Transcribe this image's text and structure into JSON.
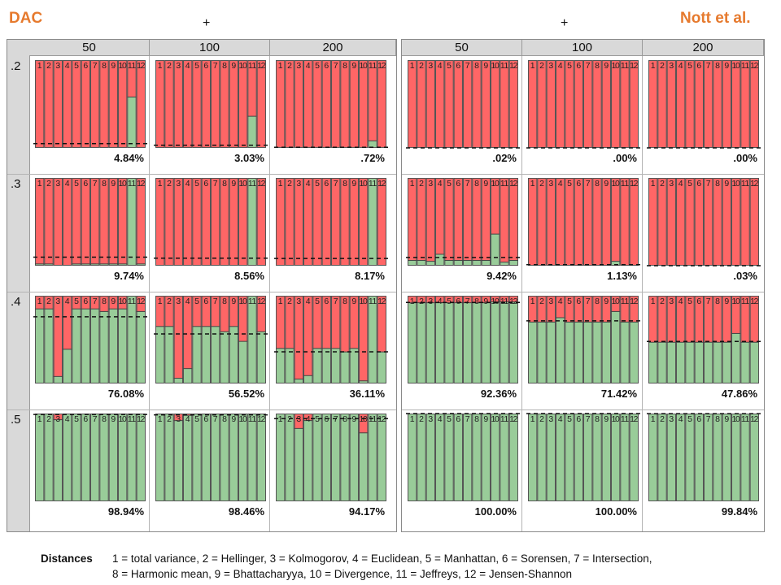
{
  "titles": {
    "left": "DAC",
    "right": "Nott et al.",
    "plus": "+"
  },
  "colors": {
    "pass": "#99cc99",
    "fail": "#ff6666",
    "header_bg": "#d9d9d9",
    "title": "#e67a2e"
  },
  "legend": {
    "label": "Distances",
    "line1": "1 = total variance, 2 = Hellinger, 3 = Kolmogorov, 4 = Euclidean, 5 = Manhattan, 6 = Sorensen, 7 = Intersection,",
    "line2": "8 = Harmonic mean, 9 = Bhattacharyya, 10 = Divergence, 11 = Jeffreys, 12 = Jensen-Shannon"
  },
  "chart_data": {
    "type": "bar",
    "title": "Acceptance proportion per distance (green = accepted, red = rejected); dashed line = overall acceptance",
    "columns": [
      "50",
      "100",
      "200"
    ],
    "rows": [
      ".2",
      ".3",
      ".4",
      ".5"
    ],
    "categories": [
      "1",
      "2",
      "3",
      "4",
      "5",
      "6",
      "7",
      "8",
      "9",
      "10",
      "11",
      "12"
    ],
    "ylim": [
      0,
      1
    ],
    "panels": [
      {
        "name": "DAC",
        "cells": [
          [
            {
              "label": "4.84%",
              "mean": 0.0484,
              "values": [
                0,
                0,
                0,
                0,
                0,
                0,
                0,
                0,
                0,
                0,
                0.58,
                0
              ]
            },
            {
              "label": "3.03%",
              "mean": 0.0303,
              "values": [
                0,
                0,
                0,
                0,
                0,
                0,
                0,
                0,
                0,
                0,
                0.36,
                0
              ]
            },
            {
              "label": ".72%",
              "mean": 0.0072,
              "values": [
                0,
                0,
                0,
                0,
                0,
                0,
                0,
                0,
                0,
                0,
                0.08,
                0
              ]
            }
          ],
          [
            {
              "label": "9.74%",
              "mean": 0.0974,
              "values": [
                0.02,
                0.02,
                0,
                0,
                0.02,
                0.02,
                0.02,
                0.02,
                0.02,
                0.02,
                1.0,
                0.02
              ]
            },
            {
              "label": "8.56%",
              "mean": 0.0856,
              "values": [
                0,
                0,
                0,
                0,
                0,
                0,
                0,
                0,
                0,
                0,
                1.0,
                0
              ]
            },
            {
              "label": "8.17%",
              "mean": 0.0817,
              "values": [
                0,
                0,
                0,
                0,
                0,
                0,
                0,
                0,
                0,
                0,
                1.0,
                0
              ]
            }
          ],
          [
            {
              "label": "76.08%",
              "mean": 0.7608,
              "values": [
                0.85,
                0.85,
                0.08,
                0.39,
                0.85,
                0.85,
                0.85,
                0.82,
                0.85,
                0.85,
                1.0,
                0.82
              ]
            },
            {
              "label": "56.52%",
              "mean": 0.5652,
              "values": [
                0.65,
                0.65,
                0.06,
                0.17,
                0.65,
                0.65,
                0.65,
                0.59,
                0.65,
                0.48,
                1.0,
                0.59
              ]
            },
            {
              "label": "36.11%",
              "mean": 0.3611,
              "values": [
                0.4,
                0.4,
                0.05,
                0.09,
                0.4,
                0.4,
                0.4,
                0.36,
                0.4,
                0.03,
                1.0,
                0.36
              ]
            }
          ],
          [
            {
              "label": "98.94%",
              "mean": 0.9894,
              "values": [
                1,
                1,
                0.93,
                1,
                1,
                1,
                1,
                1,
                1,
                1,
                1,
                1
              ]
            },
            {
              "label": "98.46%",
              "mean": 0.9846,
              "values": [
                1,
                1,
                0.92,
                0.98,
                1,
                1,
                1,
                1,
                1,
                1,
                1,
                1
              ]
            },
            {
              "label": "94.17%",
              "mean": 0.9417,
              "values": [
                1,
                1,
                0.83,
                0.92,
                1,
                1,
                1,
                1,
                1,
                0.78,
                1,
                1
              ]
            }
          ]
        ]
      },
      {
        "name": "Nott et al.",
        "cells": [
          [
            {
              "label": ".02%",
              "mean": 0.0002,
              "values": [
                0,
                0,
                0,
                0,
                0,
                0,
                0,
                0,
                0,
                0,
                0,
                0
              ]
            },
            {
              "label": ".00%",
              "mean": 0.0,
              "values": [
                0,
                0,
                0,
                0,
                0,
                0,
                0,
                0,
                0,
                0,
                0,
                0
              ]
            },
            {
              "label": ".00%",
              "mean": 0.0,
              "values": [
                0,
                0,
                0,
                0,
                0,
                0,
                0,
                0,
                0,
                0,
                0,
                0
              ]
            }
          ],
          [
            {
              "label": "9.42%",
              "mean": 0.0942,
              "values": [
                0.06,
                0.06,
                0.05,
                0.13,
                0.06,
                0.06,
                0.06,
                0.06,
                0.06,
                0.36,
                0.04,
                0.06
              ]
            },
            {
              "label": "1.13%",
              "mean": 0.0113,
              "values": [
                0,
                0,
                0,
                0,
                0,
                0,
                0,
                0,
                0,
                0.05,
                0,
                0
              ]
            },
            {
              "label": ".03%",
              "mean": 0.0003,
              "values": [
                0,
                0,
                0,
                0,
                0,
                0,
                0,
                0,
                0,
                0,
                0,
                0
              ]
            }
          ],
          [
            {
              "label": "92.36%",
              "mean": 0.9236,
              "values": [
                0.92,
                0.92,
                0.92,
                0.92,
                0.92,
                0.92,
                0.92,
                0.92,
                0.92,
                0.93,
                0.93,
                0.93
              ]
            },
            {
              "label": "71.42%",
              "mean": 0.7142,
              "values": [
                0.7,
                0.7,
                0.7,
                0.75,
                0.7,
                0.7,
                0.7,
                0.7,
                0.7,
                0.82,
                0.7,
                0.7
              ]
            },
            {
              "label": "47.86%",
              "mean": 0.4786,
              "values": [
                0.47,
                0.47,
                0.47,
                0.47,
                0.47,
                0.47,
                0.47,
                0.47,
                0.47,
                0.57,
                0.47,
                0.47
              ]
            }
          ],
          [
            {
              "label": "100.00%",
              "mean": 1.0,
              "values": [
                1,
                1,
                1,
                1,
                1,
                1,
                1,
                1,
                1,
                1,
                1,
                1
              ]
            },
            {
              "label": "100.00%",
              "mean": 1.0,
              "values": [
                1,
                1,
                1,
                1,
                1,
                1,
                1,
                1,
                1,
                1,
                1,
                1
              ]
            },
            {
              "label": "99.84%",
              "mean": 0.9984,
              "values": [
                1,
                1,
                1,
                1,
                1,
                1,
                1,
                1,
                1,
                1,
                1,
                1
              ]
            }
          ]
        ]
      }
    ]
  }
}
